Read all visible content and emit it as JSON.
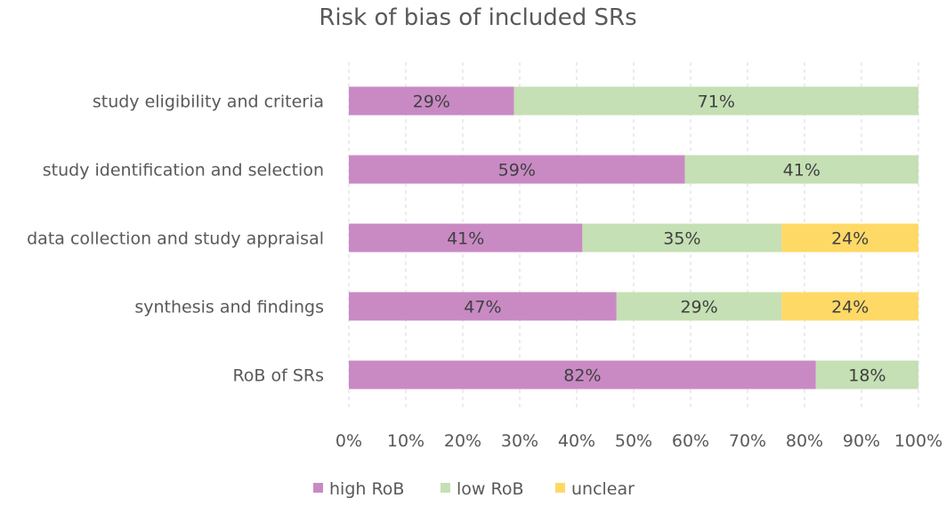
{
  "chart_data": {
    "type": "bar",
    "orientation": "horizontal",
    "stacked": true,
    "title": "Risk of bias of included SRs",
    "categories": [
      "study eligibility and criteria",
      "study identification and selection",
      "data collection and study appraisal",
      "synthesis and findings",
      "RoB of SRs"
    ],
    "series": [
      {
        "name": "high RoB",
        "color": "#c98ac4",
        "values": [
          29,
          59,
          41,
          47,
          82
        ],
        "labels": [
          "29%",
          "59%",
          "41%",
          "47%",
          "82%"
        ]
      },
      {
        "name": "low RoB",
        "color": "#c5e0b4",
        "values": [
          71,
          41,
          35,
          29,
          18
        ],
        "labels": [
          "71%",
          "41%",
          "35%",
          "29%",
          "18%"
        ]
      },
      {
        "name": "unclear",
        "color": "#ffd966",
        "values": [
          0,
          0,
          24,
          24,
          0
        ],
        "labels": [
          "",
          "",
          "24%",
          "24%",
          ""
        ]
      }
    ],
    "xlim": [
      0,
      100
    ],
    "xticks": [
      "0%",
      "10%",
      "20%",
      "30%",
      "40%",
      "50%",
      "60%",
      "70%",
      "80%",
      "90%",
      "100%"
    ],
    "grid": true,
    "legend_position": "bottom"
  }
}
